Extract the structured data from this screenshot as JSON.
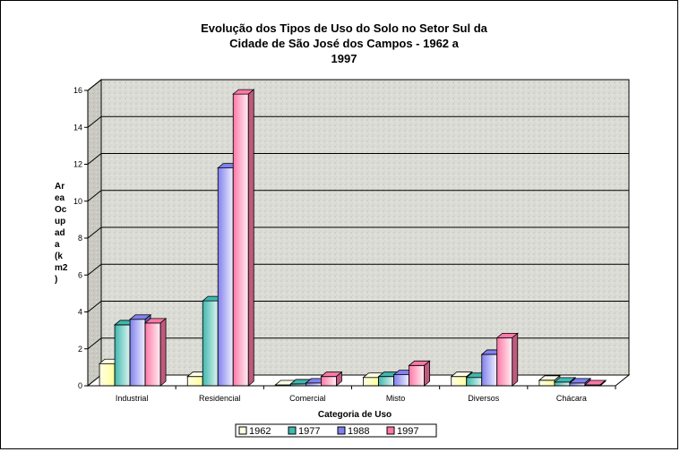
{
  "chart_data": {
    "type": "bar",
    "title_lines": [
      "Evolução dos Tipos de Uso do Solo no Setor Sul da",
      "Cidade de São José dos Campos - 1962 a",
      "1997"
    ],
    "xlabel": "Categoria de Uso",
    "ylabel": "Area Ocupada (km2)",
    "ylabel_lines": [
      "Ar",
      "ea",
      "Oc",
      "up",
      "ad",
      "a",
      "(k",
      "m2",
      ")"
    ],
    "categories": [
      "Industrial",
      "Residencial",
      "Comercial",
      "Misto",
      "Diversos",
      "Chácara"
    ],
    "series": [
      {
        "name": "1962",
        "values": [
          1.2,
          0.5,
          0.05,
          0.45,
          0.5,
          0.3
        ],
        "color": "#ffffe8",
        "edge": "#ffff9a"
      },
      {
        "name": "1977",
        "values": [
          3.3,
          4.6,
          0.1,
          0.5,
          0.45,
          0.2
        ],
        "color": "#3fb8ae",
        "edge": "#dff4f1"
      },
      {
        "name": "1988",
        "values": [
          3.6,
          11.8,
          0.15,
          0.6,
          1.7,
          0.15
        ],
        "color": "#8080ee",
        "edge": "#f0f0ff"
      },
      {
        "name": "1997",
        "values": [
          3.4,
          15.8,
          0.5,
          1.1,
          2.6,
          0.05
        ],
        "color": "#ff78a8",
        "edge": "#fff0f4"
      }
    ],
    "ylim": [
      0,
      16
    ],
    "yticks": [
      0,
      2,
      4,
      6,
      8,
      10,
      12,
      14,
      16
    ],
    "grid": true,
    "legend_position": "bottom"
  }
}
